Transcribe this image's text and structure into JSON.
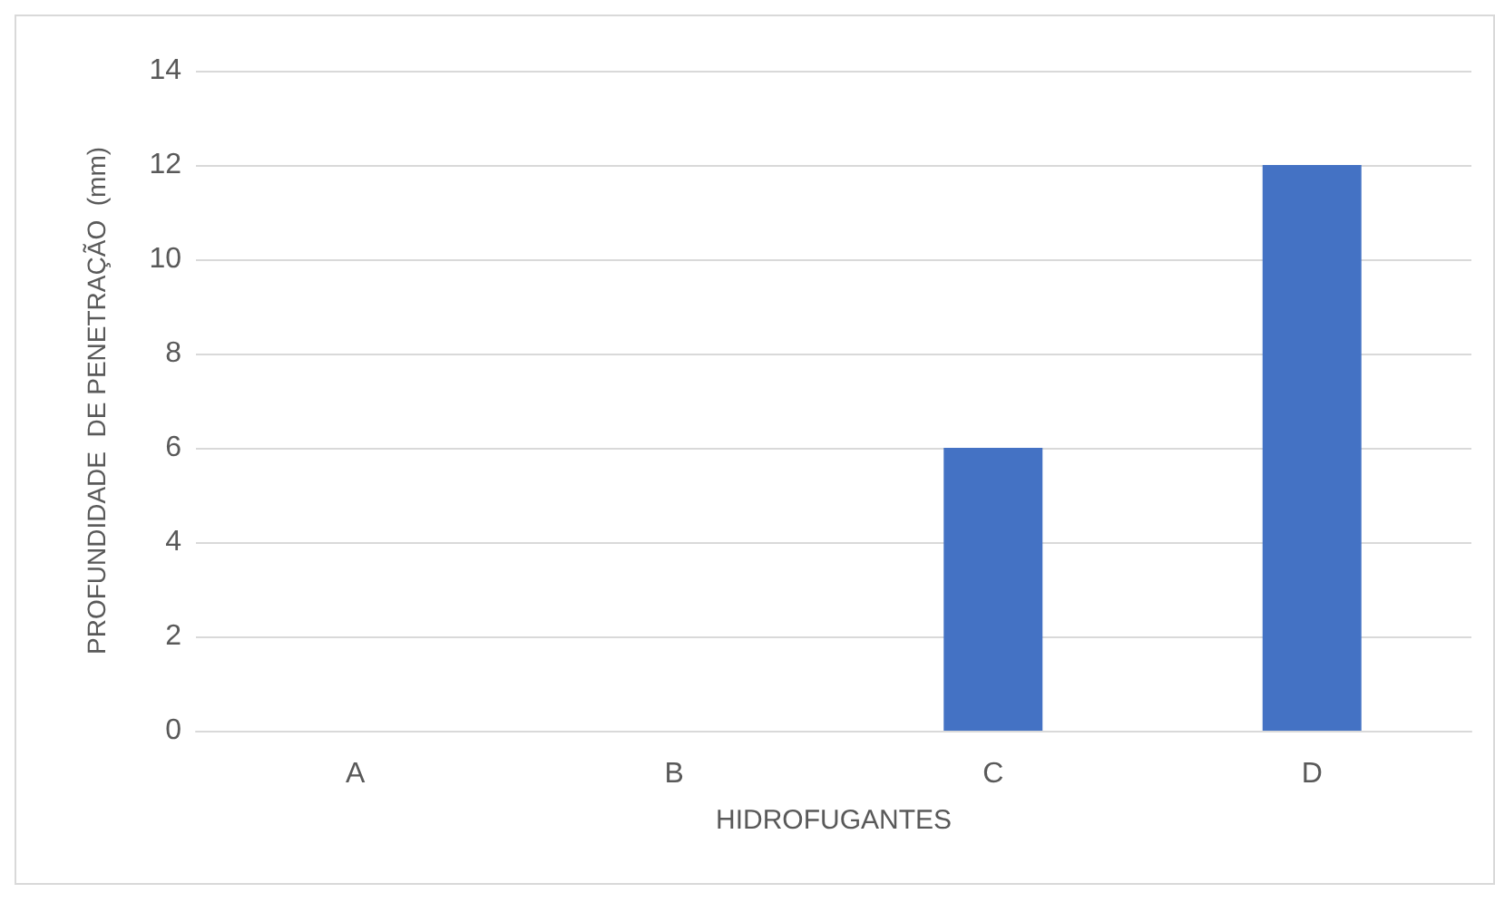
{
  "chart_data": {
    "type": "bar",
    "xlabel": "HIDROFUGANTES",
    "ylabel": "PROFUNDIDADE  DE PENETRAÇÃO  (mm)",
    "categories": [
      "A",
      "B",
      "C",
      "D"
    ],
    "values": [
      0,
      0,
      6,
      12
    ],
    "color": "#4472c4",
    "ylim": [
      0,
      14
    ],
    "yticks": [
      0,
      2,
      4,
      6,
      8,
      10,
      12,
      14
    ],
    "grid": true
  }
}
